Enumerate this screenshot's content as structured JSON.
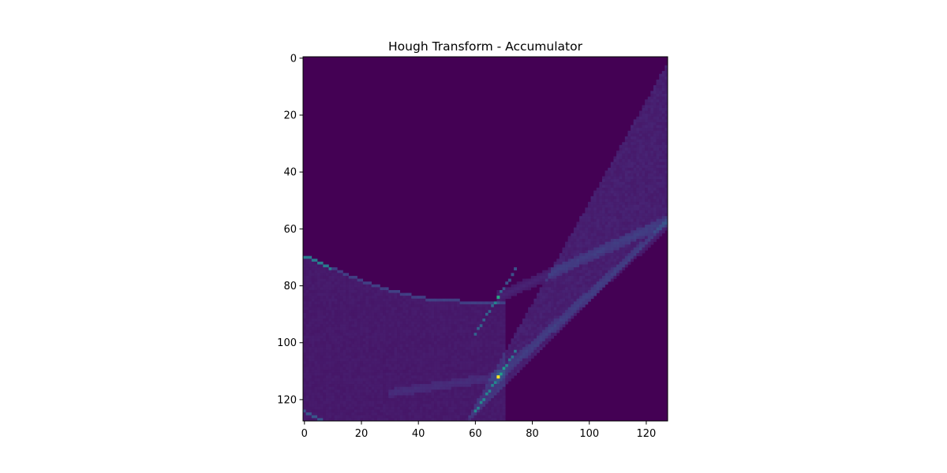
{
  "chart_data": {
    "type": "heatmap",
    "title": "Hough Transform - Accumulator",
    "xlabel": "",
    "ylabel": "",
    "xlim": [
      0,
      128
    ],
    "ylim": [
      128,
      0
    ],
    "grid": false,
    "legend": "none",
    "colormap": "viridis",
    "grid_size": [
      128,
      128
    ],
    "x_ticks": [
      {
        "value": 0,
        "label": "0"
      },
      {
        "value": 20,
        "label": "20"
      },
      {
        "value": 40,
        "label": "40"
      },
      {
        "value": 60,
        "label": "60"
      },
      {
        "value": 80,
        "label": "80"
      },
      {
        "value": 100,
        "label": "100"
      },
      {
        "value": 120,
        "label": "120"
      }
    ],
    "y_ticks": [
      {
        "value": 0,
        "label": "0"
      },
      {
        "value": 20,
        "label": "20"
      },
      {
        "value": 40,
        "label": "40"
      },
      {
        "value": 60,
        "label": "60"
      },
      {
        "value": 80,
        "label": "80"
      },
      {
        "value": 100,
        "label": "100"
      },
      {
        "value": 120,
        "label": "120"
      }
    ],
    "peaks": [
      {
        "x": 68,
        "y": 112,
        "intensity": 1.0
      },
      {
        "x": 68,
        "y": 84,
        "intensity": 0.6
      }
    ],
    "colors": {
      "background": "#440154",
      "peak": "#fde725",
      "bright": "#22a884"
    }
  }
}
